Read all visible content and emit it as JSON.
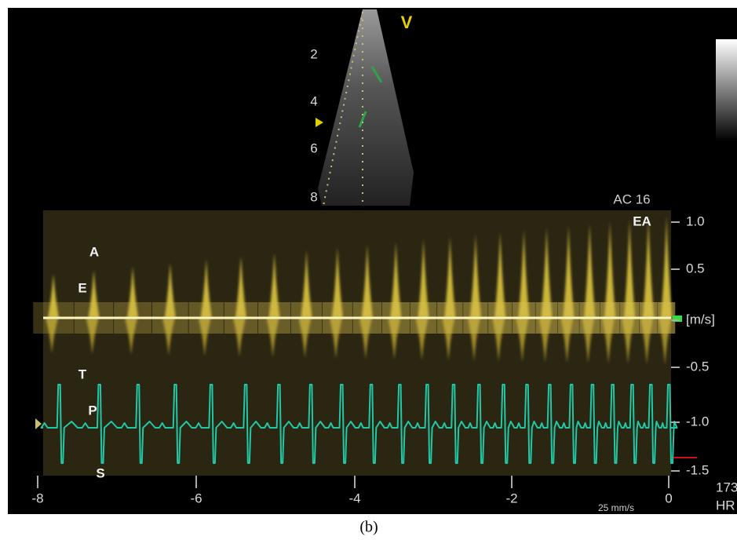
{
  "sector": {
    "marker": "V",
    "depth_labels": [
      "2",
      "4",
      "6",
      "8"
    ]
  },
  "spectral": {
    "mode": "AC 16",
    "trace_labels": [
      "EA",
      "A",
      "E",
      "T",
      "P",
      "S"
    ]
  },
  "axis": {
    "y_labels": [
      "1.0",
      "0.5",
      "[m/s]",
      "-0.5",
      "-1.0",
      "-1.5"
    ],
    "x_labels": [
      "-8",
      "-6",
      "-4",
      "-2",
      "0"
    ],
    "sweep_speed": "25 mm/s"
  },
  "heart_rate": {
    "value": "173",
    "unit": "HR"
  },
  "caption": "(b)"
}
